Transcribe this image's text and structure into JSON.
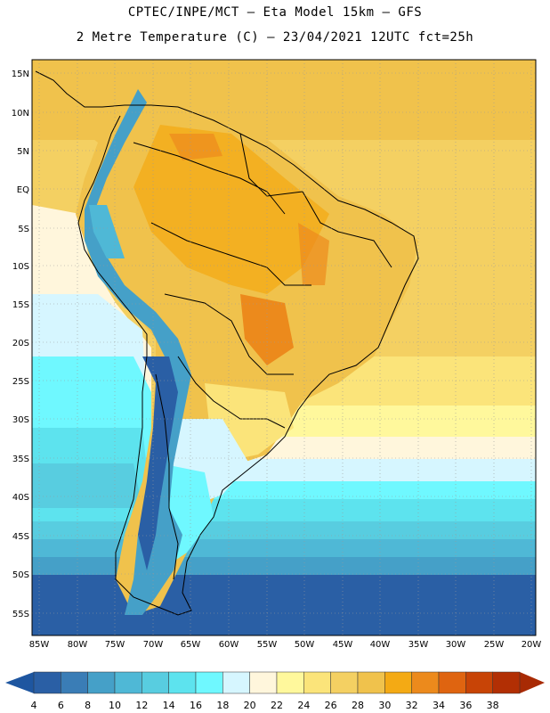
{
  "header": {
    "line1": "CPTEC/INPE/MCT –  Eta Model 15km – GFS",
    "line2": "2 Metre Temperature (C) – 23/04/2021 12UTC fct=25h"
  },
  "axes": {
    "lat_labels": [
      "15N",
      "10N",
      "5N",
      "EQ",
      "5S",
      "10S",
      "15S",
      "20S",
      "25S",
      "30S",
      "35S",
      "40S",
      "45S",
      "50S",
      "55S"
    ],
    "lon_labels": [
      "85W",
      "80W",
      "75W",
      "70W",
      "65W",
      "60W",
      "55W",
      "50W",
      "45W",
      "40W",
      "35W",
      "30W",
      "25W",
      "20W"
    ]
  },
  "colorbar": {
    "labels": [
      "4",
      "6",
      "8",
      "10",
      "12",
      "14",
      "16",
      "18",
      "20",
      "22",
      "24",
      "26",
      "28",
      "30",
      "32",
      "34",
      "36",
      "38"
    ],
    "colors": [
      "#2a5fa5",
      "#3a7db6",
      "#45a0c8",
      "#4fb8d6",
      "#58cde0",
      "#5de3ee",
      "#6ff8ff",
      "#d6f6ff",
      "#fff6dc",
      "#fff89c",
      "#fbe47a",
      "#f4d062",
      "#f0c24c",
      "#f4aa14",
      "#ec8a1c",
      "#df6410",
      "#c84406",
      "#b22f04"
    ]
  },
  "legend": {
    "left_arrow_color": "#1e56a0",
    "right_arrow_color": "#a82a04"
  }
}
